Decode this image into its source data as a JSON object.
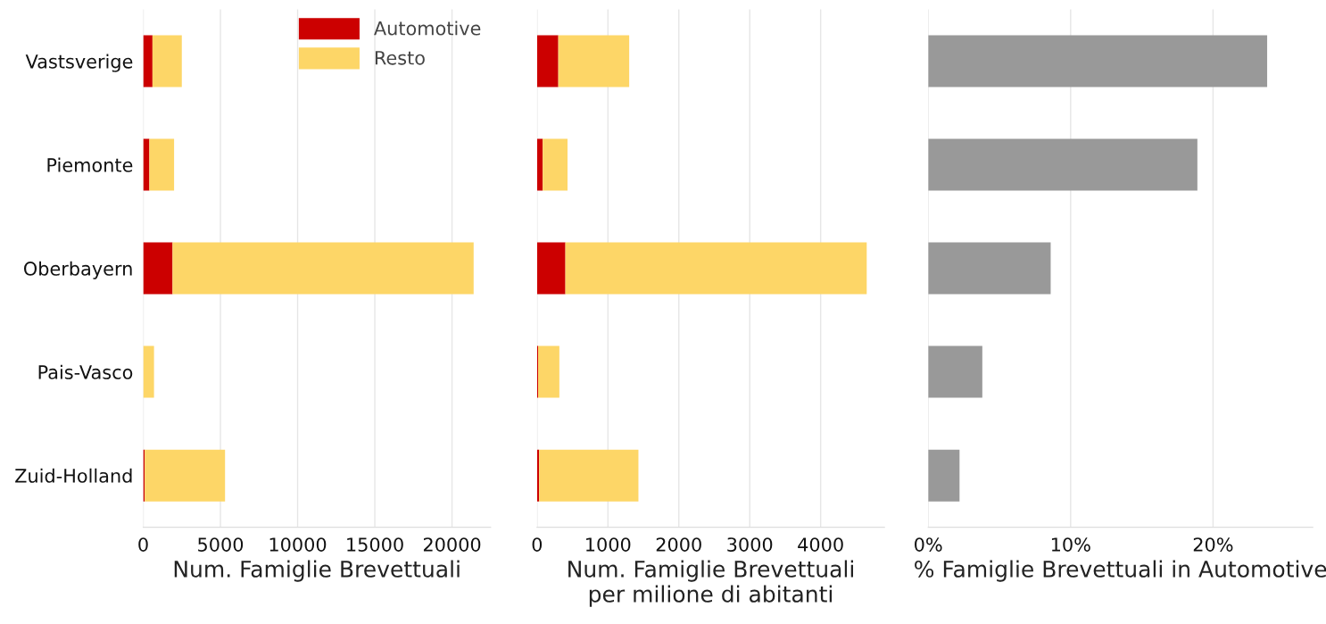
{
  "chart_data": [
    {
      "type": "bar",
      "orientation": "horizontal",
      "stacked": true,
      "categories": [
        "Vastsverige",
        "Piemonte",
        "Oberbayern",
        "Pais-Vasco",
        "Zuid-Holland"
      ],
      "xlabel": "Num. Famiglie Brevettuali",
      "series": [
        {
          "name": "Automotive",
          "color": "#cc0000",
          "values": [
            600,
            400,
            1900,
            null,
            100
          ]
        },
        {
          "name": "Resto",
          "color": "#fdd667",
          "values": [
            1900,
            1600,
            19500,
            700,
            5200
          ]
        }
      ],
      "xlim": [
        0,
        22500
      ],
      "xticks": [
        0,
        5000,
        10000,
        15000,
        20000
      ],
      "grid": "x",
      "legend": "top right"
    },
    {
      "type": "bar",
      "orientation": "horizontal",
      "stacked": true,
      "categories": [
        null,
        null,
        null,
        null,
        null
      ],
      "xlabel": "Num. Famiglie Brevettuali\nper milione di abitanti",
      "series": [
        {
          "color": "#cc0000",
          "values": [
            300,
            80,
            400,
            15,
            30
          ]
        },
        {
          "color": "#fdd667",
          "values": [
            1000,
            350,
            4250,
            300,
            1400
          ]
        }
      ],
      "xlim": [
        0,
        4900
      ],
      "xticks": [
        0,
        1000,
        2000,
        3000,
        4000
      ],
      "grid": "x",
      "tick_labels": "x"
    },
    {
      "type": "bar",
      "orientation": "horizontal",
      "categories": [
        null,
        null,
        null,
        null,
        null
      ],
      "xlabel": "% Famiglie Brevettuali in Automotive",
      "series": [
        {
          "color": "#999999",
          "values": [
            23.8,
            18.9,
            8.6,
            3.8,
            2.2
          ]
        }
      ],
      "xlim": [
        0,
        27
      ],
      "xticks": [
        {
          "value": 0,
          "label": "0%"
        },
        {
          "value": 10,
          "label": "10%"
        },
        {
          "value": 20,
          "label": "20%"
        }
      ],
      "grid": "x",
      "tick_labels": "x"
    }
  ]
}
